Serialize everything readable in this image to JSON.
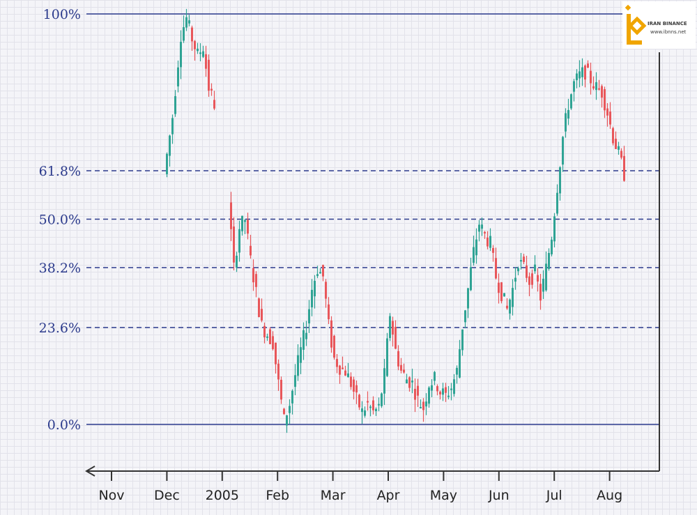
{
  "watermark": {
    "brand": "IRAN BINANCE",
    "url": "www.ibnns.net",
    "logo_color": "#f0a500"
  },
  "colors": {
    "up": "#2fa394",
    "down": "#e8565a",
    "line": "#2b3a8c",
    "label": "#2b3a8c",
    "axis": "#333333"
  },
  "chart_data": {
    "type": "candlestick",
    "title": "",
    "xlabel": "",
    "ylabel": "",
    "x_tick_labels": [
      "Nov",
      "Dec",
      "2005",
      "Feb",
      "Mar",
      "Apr",
      "May",
      "Jun",
      "Jul",
      "Aug"
    ],
    "y_scale": "fibonacci retracement percent",
    "ylim": [
      -10,
      100
    ],
    "fib_levels": [
      {
        "label": "100%",
        "value": 100,
        "style": "solid"
      },
      {
        "label": "61.8%",
        "value": 61.8,
        "style": "dashed"
      },
      {
        "label": "50.0%",
        "value": 50.0,
        "style": "dashed"
      },
      {
        "label": "38.2%",
        "value": 38.2,
        "style": "dashed"
      },
      {
        "label": "23.6%",
        "value": 23.6,
        "style": "dashed"
      },
      {
        "label": "0.0%",
        "value": 0.0,
        "style": "solid"
      }
    ],
    "price_path_percent": [
      [
        0,
        61
      ],
      [
        3,
        75
      ],
      [
        6,
        95
      ],
      [
        8,
        99
      ],
      [
        10,
        94
      ],
      [
        12,
        90
      ],
      [
        14,
        92
      ],
      [
        16,
        82
      ],
      [
        18,
        78
      ],
      [
        23,
        55
      ],
      [
        25,
        38
      ],
      [
        27,
        48
      ],
      [
        29,
        50
      ],
      [
        31,
        40
      ],
      [
        33,
        32
      ],
      [
        35,
        24
      ],
      [
        37,
        22
      ],
      [
        39,
        20
      ],
      [
        41,
        10
      ],
      [
        43,
        1
      ],
      [
        45,
        5
      ],
      [
        47,
        12
      ],
      [
        49,
        18
      ],
      [
        51,
        24
      ],
      [
        53,
        33
      ],
      [
        55,
        38
      ],
      [
        57,
        36
      ],
      [
        59,
        24
      ],
      [
        61,
        16
      ],
      [
        63,
        14
      ],
      [
        65,
        13
      ],
      [
        67,
        10
      ],
      [
        69,
        6
      ],
      [
        71,
        3
      ],
      [
        73,
        5
      ],
      [
        75,
        3
      ],
      [
        77,
        4
      ],
      [
        79,
        12
      ],
      [
        81,
        27
      ],
      [
        83,
        18
      ],
      [
        85,
        13
      ],
      [
        87,
        11
      ],
      [
        89,
        10
      ],
      [
        91,
        6
      ],
      [
        93,
        4
      ],
      [
        95,
        10
      ],
      [
        97,
        11
      ],
      [
        99,
        8
      ],
      [
        101,
        7
      ],
      [
        103,
        9
      ],
      [
        105,
        13
      ],
      [
        107,
        24
      ],
      [
        109,
        33
      ],
      [
        111,
        42
      ],
      [
        113,
        49
      ],
      [
        115,
        46
      ],
      [
        117,
        44
      ],
      [
        119,
        36
      ],
      [
        121,
        32
      ],
      [
        123,
        28
      ],
      [
        125,
        33
      ],
      [
        127,
        40
      ],
      [
        129,
        38
      ],
      [
        131,
        35
      ],
      [
        133,
        37
      ],
      [
        135,
        31
      ],
      [
        137,
        38
      ],
      [
        139,
        46
      ],
      [
        141,
        58
      ],
      [
        143,
        70
      ],
      [
        145,
        78
      ],
      [
        147,
        83
      ],
      [
        149,
        85
      ],
      [
        151,
        86
      ],
      [
        153,
        84
      ],
      [
        155,
        82
      ],
      [
        157,
        81
      ],
      [
        159,
        76
      ],
      [
        161,
        70
      ],
      [
        163,
        66
      ],
      [
        165,
        61
      ]
    ],
    "gap_between_index": [
      18,
      23
    ]
  }
}
